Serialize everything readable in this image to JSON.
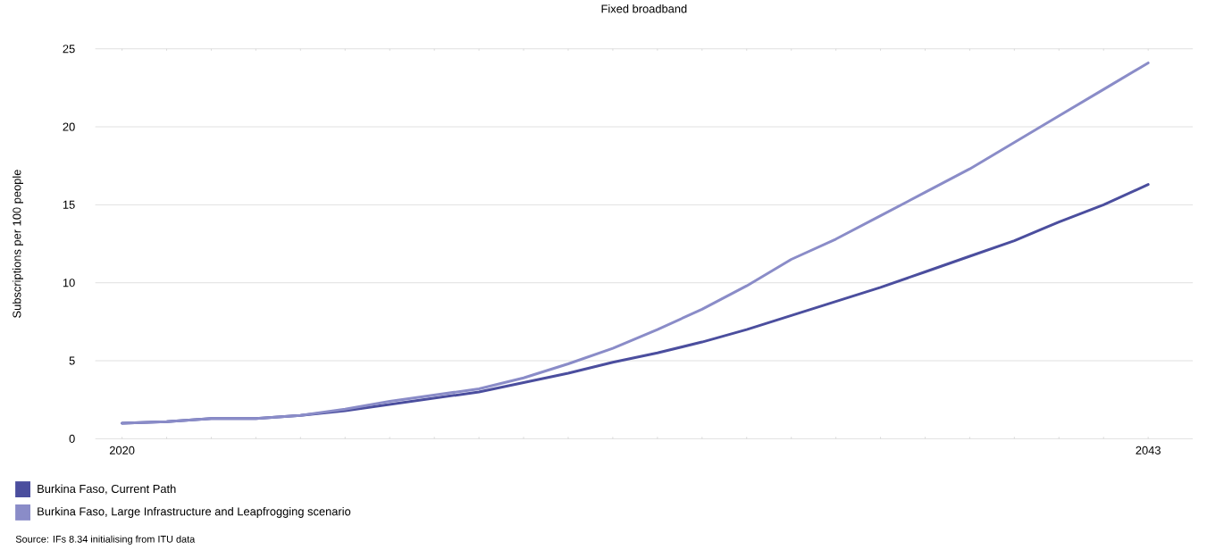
{
  "chart_data": {
    "type": "line",
    "title": "Fixed broadband",
    "ylabel": "Subscriptions per 100 people",
    "x": [
      2020,
      2021,
      2022,
      2023,
      2024,
      2025,
      2026,
      2027,
      2028,
      2029,
      2030,
      2031,
      2032,
      2033,
      2034,
      2035,
      2036,
      2037,
      2038,
      2039,
      2040,
      2041,
      2042,
      2043
    ],
    "series": [
      {
        "name": "Burkina Faso, Current Path",
        "color": "#4b4e9e",
        "values": [
          1.0,
          1.1,
          1.3,
          1.3,
          1.5,
          1.8,
          2.2,
          2.6,
          3.0,
          3.6,
          4.2,
          4.9,
          5.5,
          6.2,
          7.0,
          7.9,
          8.8,
          9.7,
          10.7,
          11.7,
          12.7,
          13.9,
          15.0,
          16.3
        ]
      },
      {
        "name": "Burkina Faso, Large Infrastructure and Leapfrogging scenario",
        "color": "#8a8cc8",
        "values": [
          1.0,
          1.1,
          1.3,
          1.3,
          1.5,
          1.9,
          2.4,
          2.8,
          3.2,
          3.9,
          4.8,
          5.8,
          7.0,
          8.3,
          9.8,
          11.5,
          12.8,
          14.3,
          15.8,
          17.3,
          19.0,
          20.7,
          22.4,
          24.1
        ]
      }
    ],
    "xlim": [
      2019.4,
      2044
    ],
    "ylim": [
      0,
      25
    ],
    "xticks": [
      2020,
      {
        "value": 2021,
        "label": null
      },
      {
        "value": 2022,
        "label": null
      },
      {
        "value": 2023,
        "label": null
      },
      {
        "value": 2024,
        "label": null
      },
      {
        "value": 2025,
        "label": null
      },
      {
        "value": 2026,
        "label": null
      },
      {
        "value": 2027,
        "label": null
      },
      {
        "value": 2028,
        "label": null
      },
      {
        "value": 2029,
        "label": null
      },
      {
        "value": 2030,
        "label": null
      },
      {
        "value": 2031,
        "label": null
      },
      {
        "value": 2032,
        "label": null
      },
      {
        "value": 2033,
        "label": null
      },
      {
        "value": 2034,
        "label": null
      },
      {
        "value": 2035,
        "label": null
      },
      {
        "value": 2036,
        "label": null
      },
      {
        "value": 2037,
        "label": null
      },
      {
        "value": 2038,
        "label": null
      },
      {
        "value": 2039,
        "label": null
      },
      {
        "value": 2040,
        "label": null
      },
      {
        "value": 2041,
        "label": null
      },
      {
        "value": 2042,
        "label": null
      },
      2043
    ],
    "yticks": [
      0,
      5,
      10,
      15,
      20,
      25
    ],
    "grid": "y",
    "legend": "bottom",
    "marker": "none",
    "line_style": "solid",
    "annotations": [
      "Source: IFs 8.34 initialising from ITU data"
    ]
  }
}
